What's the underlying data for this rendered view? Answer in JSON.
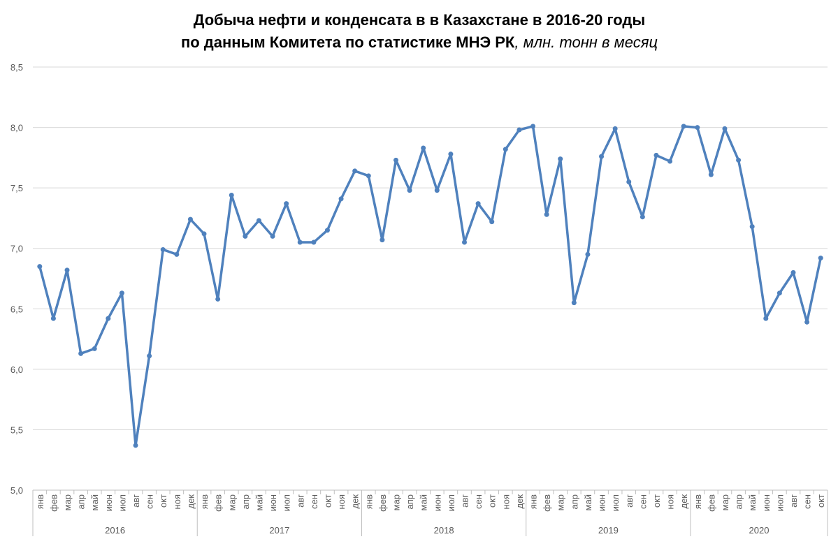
{
  "chart_data": {
    "type": "line",
    "title": "Добыча нефти и конденсата в в Казахстане в 2016-20 годы",
    "subtitle": "по данным Комитета по статистике МНЭ РК",
    "units": ", млн. тонн в месяц",
    "groups": [
      {
        "label": "2016",
        "categories": [
          "янв",
          "фев",
          "мар",
          "апр",
          "май",
          "июн",
          "июл",
          "авг",
          "сен",
          "окт",
          "ноя",
          "дек"
        ]
      },
      {
        "label": "2017",
        "categories": [
          "янв",
          "фев",
          "мар",
          "апр",
          "май",
          "июн",
          "июл",
          "авг",
          "сен",
          "окт",
          "ноя",
          "дек"
        ]
      },
      {
        "label": "2018",
        "categories": [
          "янв",
          "фев",
          "мар",
          "апр",
          "май",
          "июн",
          "июл",
          "авг",
          "сен",
          "окт",
          "ноя",
          "дек"
        ]
      },
      {
        "label": "2019",
        "categories": [
          "янв",
          "фев",
          "мар",
          "апр",
          "май",
          "июн",
          "июл",
          "авг",
          "сен",
          "окт",
          "ноя",
          "дек"
        ]
      },
      {
        "label": "2020",
        "categories": [
          "янв",
          "фев",
          "мар",
          "апр",
          "май",
          "июн",
          "июл",
          "авг",
          "сен",
          "окт"
        ]
      }
    ],
    "series": [
      {
        "color": "#4f81bd",
        "values": [
          6.85,
          6.42,
          6.82,
          6.13,
          6.17,
          6.42,
          6.63,
          5.37,
          6.11,
          6.99,
          6.95,
          7.24,
          7.12,
          6.58,
          7.44,
          7.1,
          7.23,
          7.1,
          7.37,
          7.05,
          7.05,
          7.15,
          7.41,
          7.64,
          7.6,
          7.07,
          7.73,
          7.48,
          7.83,
          7.48,
          7.78,
          7.05,
          7.37,
          7.22,
          7.82,
          7.98,
          8.01,
          7.28,
          7.74,
          6.55,
          6.95,
          7.76,
          7.99,
          7.55,
          7.26,
          7.77,
          7.72,
          8.01,
          8.0,
          7.61,
          7.99,
          7.73,
          7.18,
          6.42,
          6.63,
          6.8,
          6.39,
          6.92
        ]
      }
    ],
    "ylim": [
      5.0,
      8.5
    ],
    "yticks": [
      {
        "value": 5.0,
        "label": "5,0"
      },
      {
        "value": 5.5,
        "label": "5,5"
      },
      {
        "value": 6.0,
        "label": "6,0"
      },
      {
        "value": 6.5,
        "label": "6,5"
      },
      {
        "value": 7.0,
        "label": "7,0"
      },
      {
        "value": 7.5,
        "label": "7,5"
      },
      {
        "value": 8.0,
        "label": "8,0"
      },
      {
        "value": 8.5,
        "label": "8,5"
      }
    ],
    "grid": true
  }
}
